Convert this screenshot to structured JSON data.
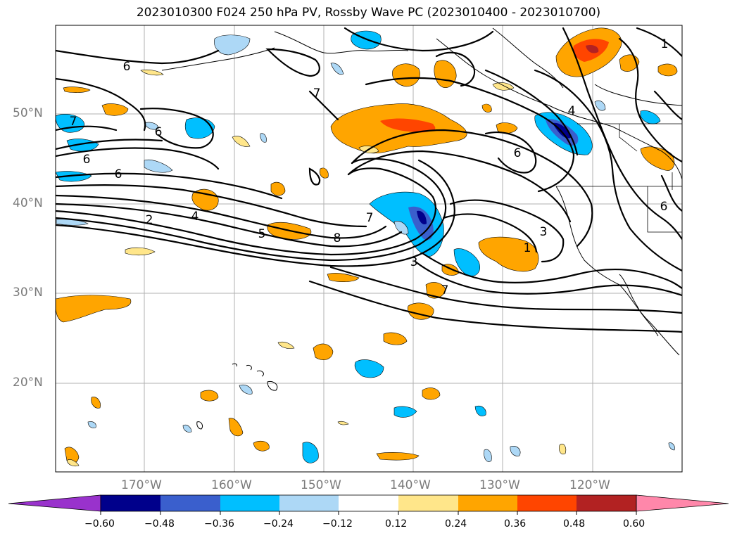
{
  "title": "2023010300 F024 250 hPa PV, Rossby Wave PC (2023010400 - 2023010700)",
  "lat_labels": [
    "50°N",
    "40°N",
    "30°N",
    "20°N"
  ],
  "lon_labels": [
    "170°W",
    "160°W",
    "150°W",
    "140°W",
    "130°W",
    "120°W"
  ],
  "contour_labels": [
    "6",
    "7",
    "6",
    "6",
    "6",
    "2",
    "4",
    "5",
    "8",
    "7",
    "3",
    "7",
    "6",
    "4",
    "1",
    "3",
    "1",
    "6",
    "7"
  ],
  "colorbar": {
    "ticks": [
      "−0.60",
      "−0.48",
      "−0.36",
      "−0.24",
      "−0.12",
      "0.12",
      "0.24",
      "0.36",
      "0.48",
      "0.60"
    ],
    "colors": [
      "#9932cc",
      "#00008b",
      "#3a5fcd",
      "#00bfff",
      "#add8f6",
      "#ffffff",
      "#ffe68a",
      "#ffa500",
      "#ff4500",
      "#b22222",
      "#ff87aa"
    ]
  }
}
